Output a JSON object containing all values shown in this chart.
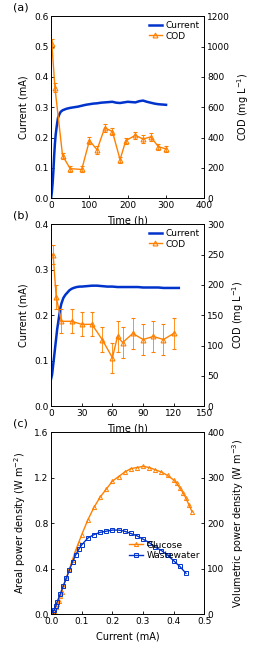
{
  "panel_a": {
    "title": "(a)",
    "current_x": [
      0,
      2,
      4,
      6,
      8,
      10,
      12,
      15,
      18,
      21,
      25,
      30,
      40,
      50,
      60,
      70,
      80,
      90,
      100,
      110,
      120,
      130,
      140,
      150,
      160,
      170,
      180,
      190,
      200,
      210,
      220,
      230,
      240,
      250,
      260,
      270,
      280,
      290,
      300
    ],
    "current_y": [
      0.0,
      0.02,
      0.05,
      0.09,
      0.14,
      0.18,
      0.21,
      0.24,
      0.265,
      0.275,
      0.285,
      0.29,
      0.295,
      0.298,
      0.3,
      0.302,
      0.305,
      0.308,
      0.31,
      0.312,
      0.313,
      0.315,
      0.316,
      0.317,
      0.318,
      0.315,
      0.314,
      0.316,
      0.318,
      0.317,
      0.316,
      0.32,
      0.322,
      0.318,
      0.315,
      0.312,
      0.31,
      0.309,
      0.308
    ],
    "cod_x": [
      2,
      10,
      30,
      50,
      80,
      100,
      120,
      140,
      160,
      180,
      195,
      220,
      240,
      260,
      280,
      300
    ],
    "cod_y": [
      1020,
      730,
      280,
      195,
      190,
      380,
      320,
      465,
      440,
      255,
      380,
      415,
      390,
      405,
      340,
      325
    ],
    "cod_yerr": [
      30,
      30,
      20,
      20,
      20,
      25,
      25,
      25,
      25,
      20,
      20,
      25,
      25,
      25,
      20,
      20
    ],
    "xlabel": "Time (h)",
    "ylabel_left": "Current (mA)",
    "ylabel_right": "COD (mg L$^{-1}$)",
    "xlim": [
      0,
      400
    ],
    "ylim_left": [
      0,
      0.6
    ],
    "ylim_right": [
      0,
      1200
    ],
    "xticks": [
      0,
      100,
      200,
      300,
      400
    ],
    "yticks_left": [
      0.0,
      0.1,
      0.2,
      0.3,
      0.4,
      0.5,
      0.6
    ],
    "yticks_right": [
      0,
      200,
      400,
      600,
      800,
      1000,
      1200
    ],
    "legend_current": "Current",
    "legend_cod": "COD",
    "current_color": "#0033cc",
    "cod_color": "#ff8000"
  },
  "panel_b": {
    "title": "(b)",
    "current_x": [
      0,
      1,
      2,
      3,
      4,
      5,
      6,
      7,
      8,
      9,
      10,
      12,
      14,
      16,
      18,
      20,
      22,
      25,
      28,
      30,
      35,
      40,
      45,
      50,
      55,
      60,
      65,
      70,
      75,
      80,
      85,
      90,
      95,
      100,
      105,
      110,
      115,
      120,
      125
    ],
    "current_y": [
      0.06,
      0.07,
      0.09,
      0.11,
      0.13,
      0.15,
      0.17,
      0.185,
      0.2,
      0.215,
      0.225,
      0.238,
      0.245,
      0.25,
      0.255,
      0.258,
      0.26,
      0.262,
      0.263,
      0.263,
      0.264,
      0.265,
      0.265,
      0.264,
      0.263,
      0.263,
      0.262,
      0.262,
      0.262,
      0.262,
      0.262,
      0.261,
      0.261,
      0.261,
      0.261,
      0.26,
      0.26,
      0.26,
      0.26
    ],
    "cod_x": [
      2,
      5,
      10,
      20,
      30,
      40,
      50,
      60,
      65,
      70,
      80,
      90,
      100,
      110,
      120
    ],
    "cod_y": [
      250,
      180,
      140,
      140,
      135,
      135,
      110,
      80,
      115,
      105,
      120,
      110,
      115,
      110,
      120
    ],
    "cod_yerr": [
      15,
      20,
      20,
      20,
      20,
      20,
      20,
      25,
      25,
      25,
      25,
      25,
      25,
      25,
      25
    ],
    "xlabel": "Time (h)",
    "ylabel_left": "Current (mA)",
    "ylabel_right": "COD (mg L$^{-1}$)",
    "xlim": [
      0,
      150
    ],
    "ylim_left": [
      0,
      0.4
    ],
    "ylim_right": [
      0,
      300
    ],
    "xticks": [
      0,
      30,
      60,
      90,
      120,
      150
    ],
    "yticks_left": [
      0.0,
      0.1,
      0.2,
      0.3,
      0.4
    ],
    "yticks_right": [
      0,
      50,
      100,
      150,
      200,
      250,
      300
    ],
    "legend_current": "Current",
    "legend_cod": "COD",
    "current_color": "#0033cc",
    "cod_color": "#ff8000"
  },
  "panel_c": {
    "title": "(c)",
    "glucose_x": [
      0.0,
      0.005,
      0.01,
      0.015,
      0.02,
      0.025,
      0.03,
      0.035,
      0.04,
      0.05,
      0.06,
      0.07,
      0.08,
      0.09,
      0.1,
      0.12,
      0.14,
      0.16,
      0.18,
      0.2,
      0.22,
      0.24,
      0.26,
      0.28,
      0.3,
      0.32,
      0.34,
      0.36,
      0.38,
      0.4,
      0.41,
      0.42,
      0.43,
      0.44,
      0.45,
      0.46
    ],
    "glucose_y": [
      0.0,
      0.015,
      0.03,
      0.06,
      0.09,
      0.12,
      0.16,
      0.2,
      0.25,
      0.32,
      0.4,
      0.48,
      0.56,
      0.63,
      0.7,
      0.83,
      0.94,
      1.03,
      1.1,
      1.17,
      1.21,
      1.25,
      1.28,
      1.29,
      1.3,
      1.29,
      1.27,
      1.25,
      1.22,
      1.18,
      1.15,
      1.11,
      1.07,
      1.02,
      0.96,
      0.9
    ],
    "wastewater_x": [
      0.0,
      0.005,
      0.01,
      0.015,
      0.02,
      0.03,
      0.04,
      0.05,
      0.06,
      0.07,
      0.08,
      0.09,
      0.1,
      0.12,
      0.14,
      0.16,
      0.18,
      0.2,
      0.22,
      0.24,
      0.26,
      0.28,
      0.3,
      0.32,
      0.34,
      0.36,
      0.38,
      0.4,
      0.42,
      0.44
    ],
    "wastewater_y": [
      0.0,
      0.02,
      0.04,
      0.07,
      0.11,
      0.18,
      0.25,
      0.32,
      0.39,
      0.46,
      0.52,
      0.57,
      0.61,
      0.67,
      0.7,
      0.72,
      0.73,
      0.74,
      0.74,
      0.73,
      0.71,
      0.69,
      0.66,
      0.63,
      0.59,
      0.56,
      0.52,
      0.47,
      0.42,
      0.36
    ],
    "xlabel": "Current (mA)",
    "ylabel_left": "Areal power density (W m$^{-2}$)",
    "ylabel_right": "Volumetric power density (W m$^{-3}$)",
    "xlim": [
      0,
      0.5
    ],
    "ylim_left": [
      0,
      1.6
    ],
    "ylim_right": [
      0,
      400
    ],
    "xticks": [
      0.0,
      0.1,
      0.2,
      0.3,
      0.4,
      0.5
    ],
    "yticks_left": [
      0.0,
      0.4,
      0.8,
      1.2,
      1.6
    ],
    "yticks_right": [
      0,
      100,
      200,
      300,
      400
    ],
    "legend_glucose": "Glucose",
    "legend_wastewater": "Wastewater",
    "glucose_color": "#ff8000",
    "wastewater_color": "#0033cc"
  },
  "figure_bgcolor": "#ffffff",
  "font_size": 7,
  "label_font_size": 7,
  "tick_font_size": 6.5,
  "title_fontsize": 8
}
